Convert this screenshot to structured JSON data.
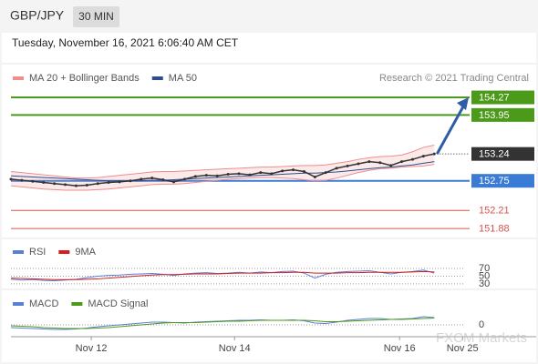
{
  "header": {
    "symbol": "GBP/JPY",
    "interval": "30 MIN",
    "timestamp": "Tuesday, November 16, 2021 6:06:40 AM CET"
  },
  "chart_data": [
    {
      "type": "line",
      "source": "Research © 2021 Trading Central",
      "xlim": [
        0,
        42
      ],
      "ylim": [
        151.7,
        154.47
      ],
      "series": [
        {
          "name": "MA 20 + Bollinger Bands",
          "color": "#f08c8c",
          "upper": [
            152.92,
            152.9,
            152.88,
            152.86,
            152.84,
            152.82,
            152.8,
            152.8,
            152.81,
            152.83,
            152.85,
            152.87,
            152.89,
            152.91,
            152.92,
            152.92,
            152.93,
            152.94,
            152.95,
            152.96,
            152.97,
            152.98,
            152.99,
            153.0,
            153.0,
            153.01,
            153.02,
            153.03,
            153.03,
            153.04,
            153.07,
            153.1,
            153.14,
            153.17,
            153.19,
            153.2,
            153.22,
            153.28,
            153.36,
            153.4
          ],
          "lower": [
            152.66,
            152.64,
            152.62,
            152.6,
            152.59,
            152.58,
            152.58,
            152.58,
            152.59,
            152.6,
            152.62,
            152.64,
            152.66,
            152.68,
            152.69,
            152.69,
            152.7,
            152.72,
            152.74,
            152.76,
            152.78,
            152.79,
            152.8,
            152.81,
            152.81,
            152.8,
            152.79,
            152.77,
            152.75,
            152.76,
            152.8,
            152.85,
            152.9,
            152.94,
            152.97,
            152.98,
            153.0,
            153.01,
            153.02,
            153.05
          ]
        },
        {
          "name": "MA 50",
          "color": "#2d4e8c",
          "values": [
            152.84,
            152.83,
            152.82,
            152.81,
            152.8,
            152.79,
            152.78,
            152.77,
            152.76,
            152.75,
            152.75,
            152.75,
            152.75,
            152.76,
            152.76,
            152.77,
            152.78,
            152.79,
            152.8,
            152.81,
            152.82,
            152.83,
            152.84,
            152.85,
            152.86,
            152.87,
            152.88,
            152.89,
            152.89,
            152.9,
            152.91,
            152.93,
            152.95,
            152.97,
            152.99,
            153.0,
            153.02,
            153.04,
            153.07,
            153.1
          ]
        }
      ],
      "price": {
        "color": "#333333",
        "values": [
          152.78,
          152.76,
          152.74,
          152.72,
          152.7,
          152.68,
          152.66,
          152.67,
          152.7,
          152.72,
          152.73,
          152.75,
          152.78,
          152.8,
          152.77,
          152.73,
          152.78,
          152.83,
          152.85,
          152.84,
          152.87,
          152.88,
          152.86,
          152.9,
          152.88,
          152.93,
          152.95,
          152.92,
          152.82,
          152.9,
          152.98,
          153.02,
          153.06,
          153.1,
          153.08,
          153.03,
          153.1,
          153.14,
          153.2,
          153.24
        ]
      },
      "levels": [
        {
          "value": 154.27,
          "color": "#4c9a1a",
          "box": true
        },
        {
          "value": 153.95,
          "color": "#4c9a1a",
          "box": true
        },
        {
          "value": 153.24,
          "color": "#333333",
          "box": true,
          "dotted": true
        },
        {
          "value": 152.75,
          "color": "#3a7bd5",
          "box": true
        },
        {
          "value": 152.21,
          "color": "#d9534f",
          "box": false
        },
        {
          "value": 151.88,
          "color": "#d9534f",
          "box": false
        }
      ]
    },
    {
      "type": "line",
      "xlim": [
        0,
        42
      ],
      "ylim": [
        18,
        89
      ],
      "yticks": [
        70,
        50,
        30
      ],
      "series": [
        {
          "name": "RSI",
          "color": "#5b7fd6",
          "values": [
            42,
            40,
            41,
            39,
            38,
            40,
            42,
            46,
            50,
            52,
            53,
            55,
            56,
            57,
            55,
            52,
            56,
            58,
            59,
            57,
            58,
            60,
            58,
            61,
            59,
            62,
            63,
            58,
            45,
            55,
            60,
            62,
            63,
            64,
            60,
            56,
            60,
            62,
            66,
            58
          ]
        },
        {
          "name": "9MA",
          "color": "#d11f1f",
          "values": [
            45,
            44,
            43,
            42,
            41,
            41,
            41,
            42,
            43,
            45,
            47,
            49,
            51,
            53,
            54,
            54,
            55,
            56,
            56,
            56,
            57,
            58,
            58,
            58,
            59,
            59,
            60,
            60,
            58,
            58,
            58,
            59,
            59,
            60,
            60,
            60,
            60,
            61,
            62,
            61
          ]
        }
      ]
    },
    {
      "type": "line",
      "xlim": [
        0,
        42
      ],
      "ylim": [
        -0.1,
        0.2
      ],
      "yticks": [
        0
      ],
      "xticks": [
        {
          "value": 7.4,
          "label": "Nov 12"
        },
        {
          "value": 20.6,
          "label": "Nov 14"
        },
        {
          "value": 35.8,
          "label": "Nov 16"
        },
        {
          "value": 41.6,
          "label": "Nov 25"
        }
      ],
      "watermark": "FXCM Markets",
      "series": [
        {
          "name": "MACD",
          "color": "#5b7fd6",
          "values": [
            -0.03,
            -0.035,
            -0.04,
            -0.045,
            -0.05,
            -0.05,
            -0.045,
            -0.035,
            -0.02,
            -0.01,
            0,
            0.01,
            0.02,
            0.03,
            0.03,
            0.025,
            0.02,
            0.03,
            0.035,
            0.04,
            0.045,
            0.05,
            0.05,
            0.055,
            0.05,
            0.05,
            0.055,
            0.045,
            0.02,
            0.015,
            0.03,
            0.05,
            0.06,
            0.07,
            0.07,
            0.06,
            0.065,
            0.07,
            0.09,
            0.08
          ]
        },
        {
          "name": "MACD Signal",
          "color": "#4c9a1a",
          "values": [
            -0.01,
            -0.015,
            -0.02,
            -0.03,
            -0.035,
            -0.04,
            -0.04,
            -0.04,
            -0.035,
            -0.03,
            -0.02,
            -0.01,
            0,
            0.01,
            0.02,
            0.025,
            0.025,
            0.025,
            0.03,
            0.035,
            0.04,
            0.04,
            0.045,
            0.05,
            0.05,
            0.05,
            0.05,
            0.05,
            0.045,
            0.035,
            0.035,
            0.04,
            0.045,
            0.05,
            0.055,
            0.06,
            0.06,
            0.065,
            0.07,
            0.075
          ]
        }
      ]
    }
  ]
}
